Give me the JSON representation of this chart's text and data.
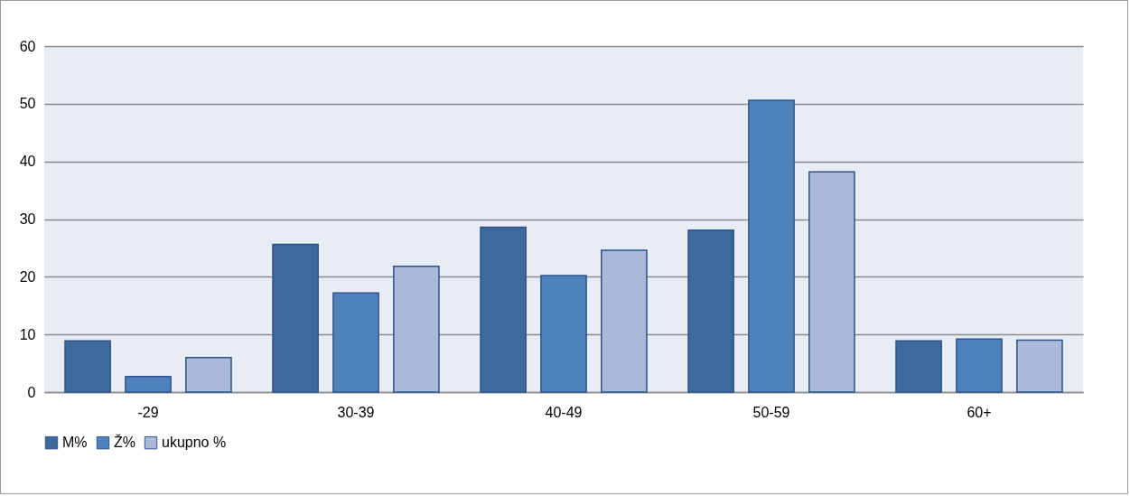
{
  "chart_data": {
    "type": "bar",
    "categories": [
      "-29",
      "30-39",
      "40-49",
      "50-59",
      "60+"
    ],
    "series": [
      {
        "name": "M%",
        "color": "#3f689b",
        "values": [
          8.9,
          25.6,
          28.6,
          28.1,
          8.9
        ]
      },
      {
        "name": "Ž%",
        "color": "#4f81bd",
        "values": [
          2.7,
          17.2,
          20.2,
          50.6,
          9.2
        ]
      },
      {
        "name": "ukupno %",
        "color": "#aab9d7",
        "values": [
          6.0,
          21.8,
          24.6,
          38.2,
          9.0
        ]
      }
    ],
    "ylim": [
      0,
      60
    ],
    "yticks": [
      0,
      10,
      20,
      30,
      40,
      50,
      60
    ],
    "grid": "y",
    "legend": "bottom"
  }
}
